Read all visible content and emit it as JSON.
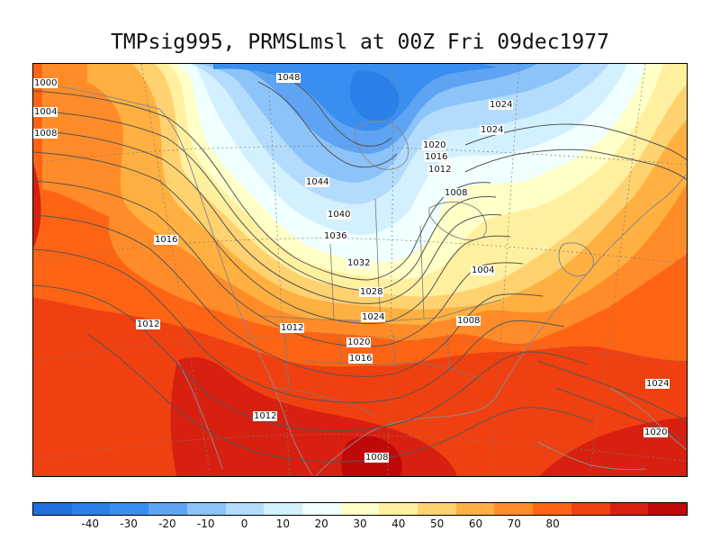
{
  "title": "TMPsig995, PRMSLmsl at 00Z Fri 09dec1977",
  "colorbar": {
    "colors": [
      "#1e6fdc",
      "#2a80e8",
      "#3a8ef0",
      "#5ea4f2",
      "#8cc4fa",
      "#b3dcfc",
      "#d2f0fd",
      "#f0ffff",
      "#ffffc8",
      "#fff0a0",
      "#ffd270",
      "#ffb040",
      "#ff8c28",
      "#ff6414",
      "#f04010",
      "#d82010",
      "#c00808"
    ],
    "tick_labels": [
      "-40",
      "-30",
      "-20",
      "-10",
      "0",
      "10",
      "20",
      "30",
      "40",
      "50",
      "60",
      "70",
      "80"
    ]
  },
  "contour_labels": [
    "1000",
    "1004",
    "1008",
    "1048",
    "1024",
    "1024",
    "1020",
    "1016",
    "1012",
    "1044",
    "1008",
    "1040",
    "1016",
    "1036",
    "1032",
    "1004",
    "1028",
    "1012",
    "1024",
    "1008",
    "1020",
    "1016",
    "1012",
    "1008",
    "1024",
    "1020"
  ]
}
